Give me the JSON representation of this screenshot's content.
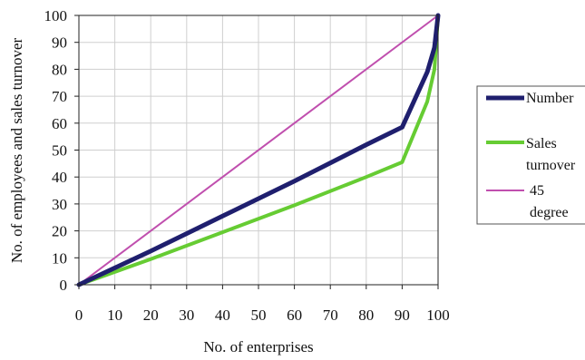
{
  "chart_data": {
    "type": "line",
    "title": "",
    "xlabel": "No. of enterprises",
    "ylabel": "No. of employees and sales turnover",
    "xlim": [
      0,
      100
    ],
    "ylim": [
      0,
      100
    ],
    "xticks": [
      0,
      10,
      20,
      30,
      40,
      50,
      60,
      70,
      80,
      90,
      100
    ],
    "yticks": [
      0,
      10,
      20,
      30,
      40,
      50,
      60,
      70,
      80,
      90,
      100
    ],
    "grid": true,
    "legend_position": "right",
    "series": [
      {
        "name": "Number",
        "color": "#1f1f6e",
        "points": [
          [
            0,
            0
          ],
          [
            20,
            12.5
          ],
          [
            40,
            25.5
          ],
          [
            60,
            38.5
          ],
          [
            80,
            52
          ],
          [
            90,
            58.5
          ],
          [
            97,
            79
          ],
          [
            99,
            88
          ],
          [
            100,
            100
          ]
        ]
      },
      {
        "name": "Sales turnover",
        "color": "#66cc33",
        "points": [
          [
            0,
            0
          ],
          [
            20,
            9.5
          ],
          [
            40,
            19.5
          ],
          [
            60,
            29.5
          ],
          [
            80,
            40
          ],
          [
            90,
            45.5
          ],
          [
            97,
            68
          ],
          [
            99,
            80
          ],
          [
            100,
            100
          ]
        ]
      },
      {
        "name": "45 degree",
        "color": "#c04fae",
        "points": [
          [
            0,
            0
          ],
          [
            100,
            100
          ]
        ]
      }
    ]
  },
  "legend": {
    "items": [
      {
        "line1": "Number",
        "line2": ""
      },
      {
        "line1": "Sales",
        "line2": "turnover"
      },
      {
        "line1": "45",
        "line2": "degree"
      }
    ]
  }
}
